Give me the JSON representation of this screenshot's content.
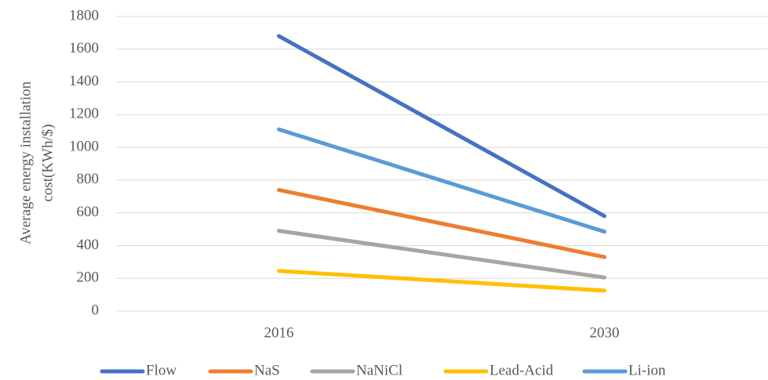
{
  "chart_data": {
    "type": "line",
    "ylabel": [
      "Average energy installation",
      "cost(KWh/$)"
    ],
    "categories": [
      "2016",
      "2030"
    ],
    "series": [
      {
        "name": "Flow",
        "color": "#4472c4",
        "values": [
          1680,
          580
        ]
      },
      {
        "name": "NaS",
        "color": "#ed7d31",
        "values": [
          740,
          330
        ]
      },
      {
        "name": "NaNiCl",
        "color": "#a5a5a5",
        "values": [
          490,
          205
        ]
      },
      {
        "name": "Lead-Acid",
        "color": "#ffc000",
        "values": [
          245,
          125
        ]
      },
      {
        "name": "Li-ion",
        "color": "#5b9bd5",
        "values": [
          1110,
          485
        ]
      }
    ],
    "ylim": [
      0,
      1800
    ],
    "yticks": [
      0,
      200,
      400,
      600,
      800,
      1000,
      1200,
      1400,
      1600,
      1800
    ],
    "grid": true,
    "legend": "bottom"
  }
}
